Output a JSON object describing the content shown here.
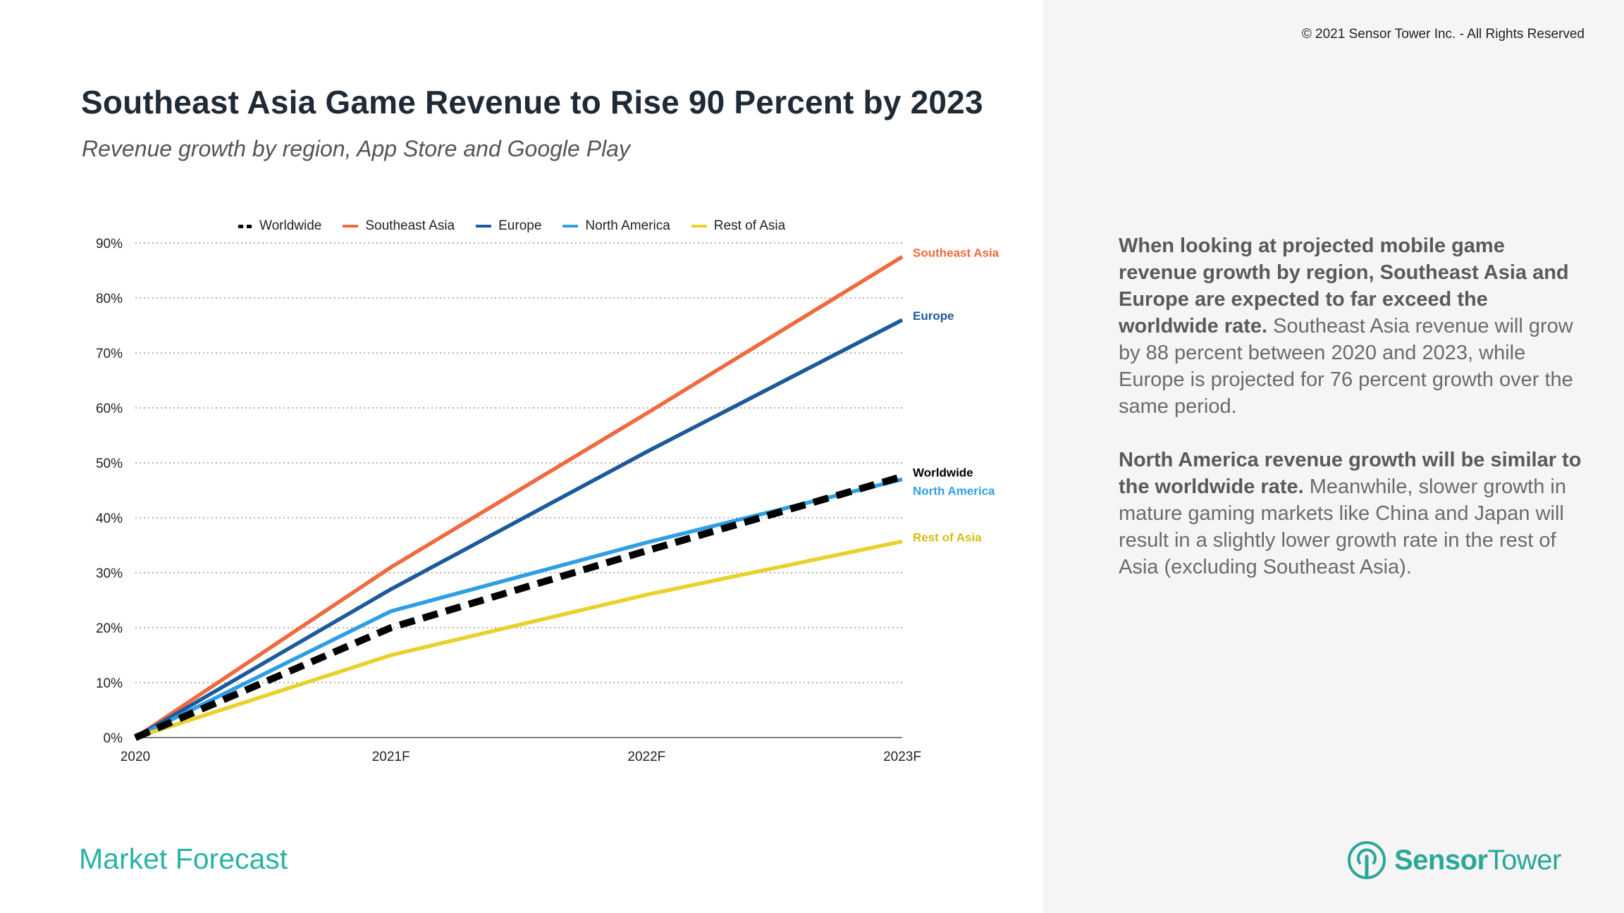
{
  "copyright": "© 2021 Sensor Tower Inc. - All Rights Reserved",
  "title": "Southeast Asia Game Revenue to Rise 90 Percent by 2023",
  "subtitle": "Revenue growth by region, App Store and Google Play",
  "description": {
    "p1_bold": "When looking at projected mobile game revenue growth by region, Southeast Asia and Europe are expected to far exceed the worldwide rate.",
    "p1_text": " Southeast Asia revenue will grow by 88 percent between 2020 and 2023, while Europe is projected for 76 percent growth over the same period.",
    "p2_bold": "North America revenue growth will be similar to the worldwide rate.",
    "p2_text": " Meanwhile, slower growth in mature gaming markets like China and Japan will result in a slightly lower growth rate in the rest of Asia (excluding Southeast Asia)."
  },
  "footer_label": "Market Forecast",
  "logo": {
    "icon": "sensor-tower-logo-icon",
    "text_bold": "Sensor",
    "text_light": "Tower",
    "color": "#2aa79a"
  },
  "chart_data": {
    "type": "line",
    "title": "Southeast Asia Game Revenue to Rise 90 Percent by 2023",
    "subtitle": "Revenue growth by region, App Store and Google Play",
    "xlabel": "",
    "ylabel": "",
    "categories": [
      "2020",
      "2021F",
      "2022F",
      "2023F"
    ],
    "ylim": [
      0,
      90
    ],
    "yticks": [
      0,
      10,
      20,
      30,
      40,
      50,
      60,
      70,
      80,
      90
    ],
    "ytick_labels": [
      "0%",
      "10%",
      "20%",
      "30%",
      "40%",
      "50%",
      "60%",
      "70%",
      "80%",
      "90%"
    ],
    "grid": "horizontal-dotted",
    "legend_position": "top",
    "series": [
      {
        "name": "Worldwide",
        "values": [
          0,
          20,
          34,
          47.5
        ],
        "color": "#000000",
        "dashed": true,
        "label_color": "#000000"
      },
      {
        "name": "Southeast Asia",
        "values": [
          0,
          31,
          59,
          87.5
        ],
        "color": "#f0693f",
        "dashed": false,
        "label_color": "#f0693f"
      },
      {
        "name": "Europe",
        "values": [
          0,
          27,
          52,
          76
        ],
        "color": "#1b5a9b",
        "dashed": false,
        "label_color": "#1b5a9b"
      },
      {
        "name": "North America",
        "values": [
          0,
          23,
          35.5,
          47
        ],
        "color": "#2e9fe4",
        "dashed": false,
        "label_color": "#2e9fe4"
      },
      {
        "name": "Rest of Asia",
        "values": [
          0,
          15,
          26,
          35.7
        ],
        "color": "#e8d12a",
        "dashed": false,
        "label_color": "#d9bd10"
      }
    ]
  }
}
